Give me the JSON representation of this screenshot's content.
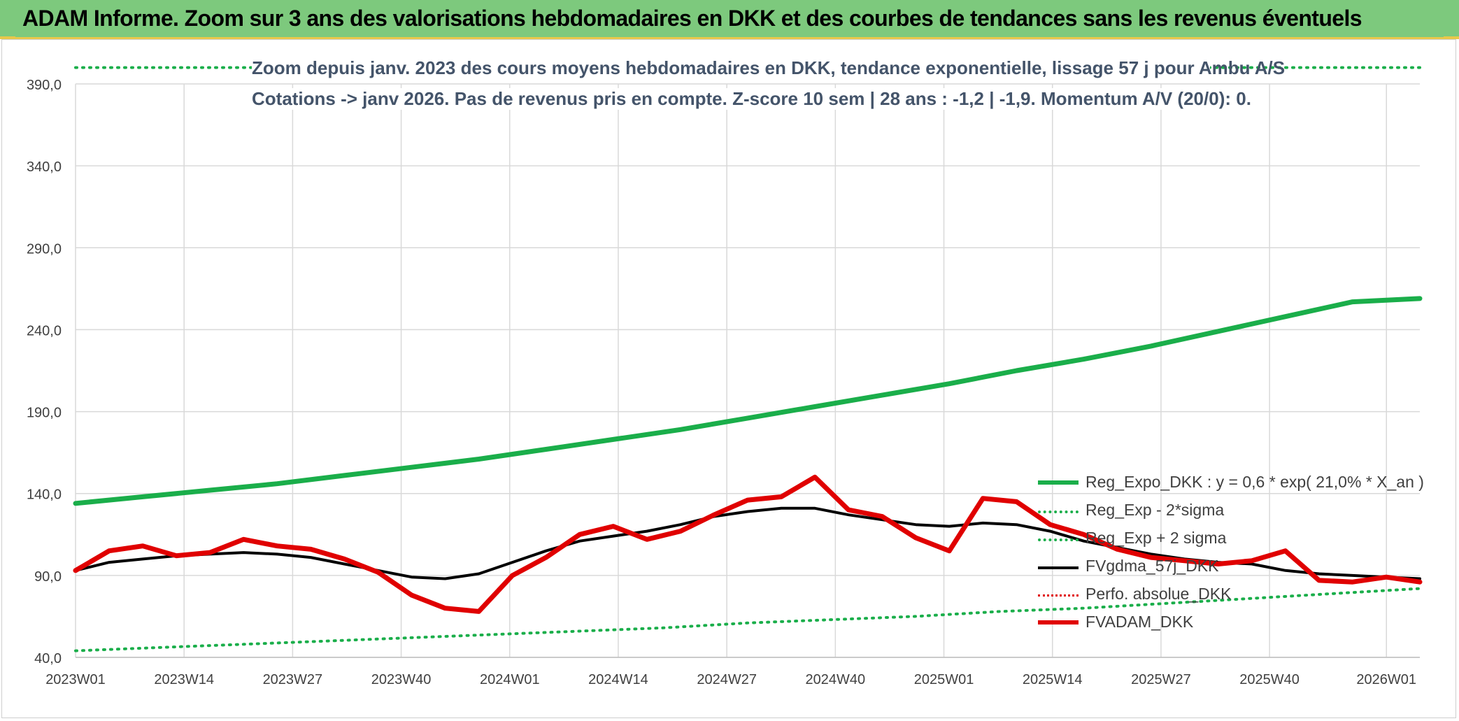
{
  "header": {
    "title": "ADAM Informe. Zoom sur 3 ans des valorisations hebdomadaires en DKK et des courbes de tendances sans les revenus éventuels"
  },
  "chart_data": {
    "type": "line",
    "title_line1": "Zoom depuis janv. 2023 des cours moyens hebdomadaires en DKK, tendance exponentielle, lissage 57 j pour Ambu A/S",
    "title_line2": "Cotations -> janv 2026. Pas de revenus pris en compte. Z-score 10 sem | 28 ans : -1,2 | -1,9. Momentum A/V (20/0): 0.",
    "xlabel": "",
    "ylabel": "",
    "ylim": [
      40,
      390
    ],
    "y_ticks": [
      "390,0",
      "340,0",
      "290,0",
      "240,0",
      "190,0",
      "140,0",
      "90,0",
      "40,0"
    ],
    "x_ticks": [
      "2023W01",
      "2023W14",
      "2023W27",
      "2023W40",
      "2024W01",
      "2024W14",
      "2024W27",
      "2024W40",
      "2025W01",
      "2025W14",
      "2025W27",
      "2025W40",
      "2026W01"
    ],
    "grid": true,
    "legend_position": "lower-right",
    "x_weeks": [
      0,
      4,
      8,
      12,
      16,
      20,
      24,
      28,
      32,
      36,
      40,
      44,
      48,
      52,
      56,
      60,
      64,
      68,
      72,
      76,
      80,
      84,
      88,
      92,
      96,
      100,
      104,
      108,
      112,
      116,
      120,
      124,
      128,
      132,
      136,
      140,
      144,
      148,
      152,
      156,
      160,
      161
    ],
    "series": [
      {
        "name": "Reg_Expo_DKK : y = 0,6 * exp( 21,0% *  X_an )",
        "color": "#1aae4a",
        "style": "solid-thick",
        "values": [
          134,
          138,
          142,
          146,
          151,
          156,
          161,
          167,
          173,
          179,
          186,
          193,
          200,
          207,
          215,
          222,
          230,
          239,
          248,
          257,
          259
        ]
      },
      {
        "name": "Reg_Exp - 2*sigma",
        "color": "#1aae4a",
        "style": "dotted",
        "values": [
          44,
          46,
          48,
          50,
          52,
          54,
          56,
          58,
          61,
          63,
          65,
          68,
          70,
          73,
          76,
          79,
          82
        ]
      },
      {
        "name": "Reg_Exp + 2 sigma",
        "color": "#1aae4a",
        "style": "dotted",
        "values": [
          400
        ]
      },
      {
        "name": "FVgdma_57j_DKK",
        "color": "#000000",
        "style": "solid",
        "values": [
          93,
          98,
          100,
          102,
          103,
          104,
          103,
          101,
          97,
          93,
          89,
          88,
          91,
          98,
          105,
          111,
          114,
          117,
          121,
          126,
          129,
          131,
          131,
          127,
          124,
          121,
          120,
          122,
          121,
          117,
          111,
          107,
          103,
          100,
          98,
          97,
          93,
          91,
          90,
          89,
          88
        ]
      },
      {
        "name": "Perfo. absolue_DKK",
        "color": "#e00000",
        "style": "dotted",
        "values": []
      },
      {
        "name": "FVADAM_DKK",
        "color": "#e00000",
        "style": "solid-thick",
        "values": [
          93,
          105,
          108,
          102,
          104,
          112,
          108,
          106,
          100,
          92,
          78,
          70,
          68,
          90,
          101,
          115,
          120,
          112,
          117,
          127,
          136,
          138,
          150,
          130,
          126,
          113,
          105,
          137,
          135,
          121,
          115,
          106,
          101,
          99,
          97,
          99,
          105,
          87,
          86,
          89,
          86
        ]
      }
    ]
  }
}
